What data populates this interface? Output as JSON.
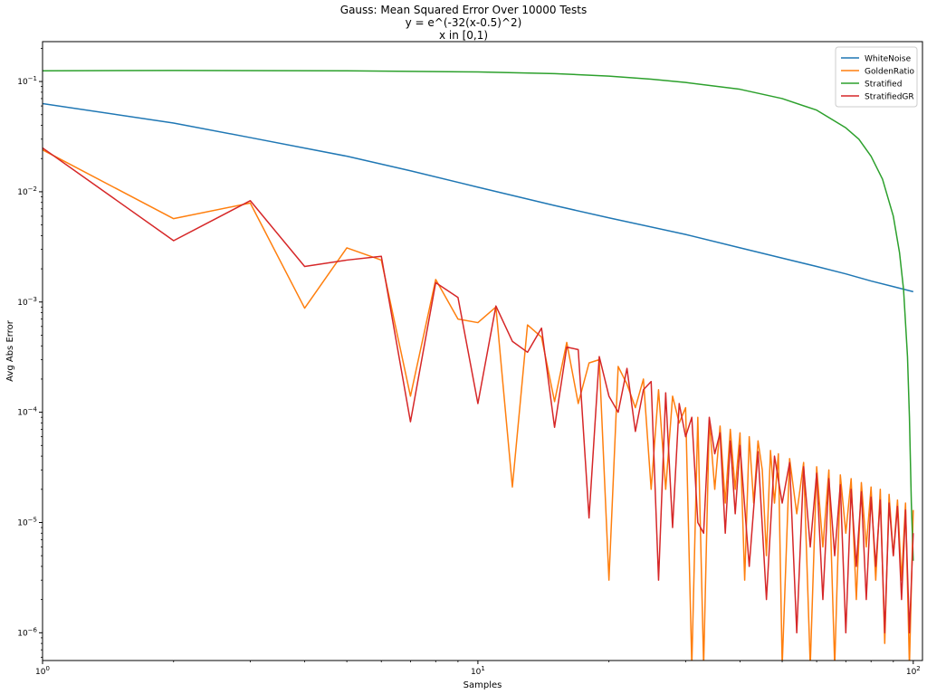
{
  "chart_data": {
    "type": "line",
    "title_lines": [
      "Gauss: Mean Squared Error Over 10000 Tests",
      "y = e^(-32(x-0.5)^2)",
      "x in [0,1)"
    ],
    "xlabel": "Samples",
    "ylabel": "Avg Abs Error",
    "xscale": "log",
    "yscale": "log",
    "xlim": [
      1,
      105
    ],
    "ylim": [
      5.6e-07,
      0.23
    ],
    "grid": false,
    "legend_position": "top-right",
    "x_ticks": [
      {
        "value": 1,
        "label": "10^0"
      },
      {
        "value": 10,
        "label": "10^1"
      },
      {
        "value": 100,
        "label": "10^2"
      }
    ],
    "y_ticks": [
      {
        "value": 1e-06,
        "label": "10^-6"
      },
      {
        "value": 1e-05,
        "label": "10^-5"
      },
      {
        "value": 0.0001,
        "label": "10^-4"
      },
      {
        "value": 0.001,
        "label": "10^-3"
      },
      {
        "value": 0.01,
        "label": "10^-2"
      },
      {
        "value": 0.1,
        "label": "10^-1"
      }
    ],
    "series": [
      {
        "name": "WhiteNoise",
        "color": "#1f77b4",
        "x": [
          1,
          2,
          3,
          5,
          7,
          10,
          15,
          20,
          30,
          40,
          50,
          60,
          70,
          80,
          90,
          100
        ],
        "y": [
          0.063,
          0.042,
          0.031,
          0.021,
          0.0155,
          0.011,
          0.0075,
          0.0058,
          0.0041,
          0.0031,
          0.0025,
          0.0021,
          0.0018,
          0.00155,
          0.00138,
          0.00124
        ]
      },
      {
        "name": "GoldenRatio",
        "color": "#ff7f0e",
        "x": [
          1,
          2,
          3,
          4,
          5,
          6,
          7,
          8,
          9,
          10,
          11,
          12,
          13,
          14,
          15,
          16,
          17,
          18,
          19,
          20,
          21,
          22,
          23,
          24,
          25,
          26,
          27,
          28,
          29,
          30,
          31,
          32,
          33,
          34,
          35,
          36,
          37,
          38,
          39,
          40,
          41,
          42,
          43,
          44,
          45,
          46,
          47,
          48,
          49,
          50,
          52,
          54,
          56,
          58,
          60,
          62,
          64,
          66,
          68,
          70,
          72,
          74,
          76,
          78,
          80,
          82,
          84,
          86,
          88,
          90,
          92,
          94,
          96,
          98,
          100
        ],
        "y": [
          0.024,
          0.0057,
          0.0079,
          0.00088,
          0.0031,
          0.0024,
          0.00014,
          0.0016,
          0.0007,
          0.00065,
          0.0009,
          2.1e-05,
          0.00062,
          0.00048,
          0.000125,
          0.00043,
          0.00012,
          0.00028,
          0.0003,
          3e-06,
          0.00026,
          0.00018,
          0.00011,
          0.0002,
          2e-05,
          0.00016,
          2e-05,
          0.00014,
          8e-05,
          0.00011,
          5e-07,
          9e-05,
          5e-07,
          8.5e-05,
          2e-05,
          7.5e-05,
          1.5e-05,
          7e-05,
          2e-05,
          6.5e-05,
          3e-06,
          6e-05,
          1.5e-05,
          5.5e-05,
          3e-05,
          5e-06,
          4.5e-05,
          1.5e-05,
          4.2e-05,
          5e-07,
          3.8e-05,
          1.2e-05,
          3.5e-05,
          5e-07,
          3.2e-05,
          6e-06,
          3e-05,
          5e-07,
          2.7e-05,
          8e-06,
          2.5e-05,
          2e-06,
          2.3e-05,
          6e-06,
          2.1e-05,
          3e-06,
          2e-05,
          8e-07,
          1.8e-05,
          5e-06,
          1.6e-05,
          3e-06,
          1.5e-05,
          5e-07,
          1.3e-05
        ]
      },
      {
        "name": "Stratified",
        "color": "#2ca02c",
        "x": [
          1,
          2,
          5,
          10,
          15,
          20,
          25,
          30,
          40,
          50,
          60,
          70,
          75,
          80,
          85,
          90,
          93,
          95,
          97,
          98,
          99,
          100
        ],
        "y": [
          0.125,
          0.126,
          0.125,
          0.122,
          0.118,
          0.112,
          0.105,
          0.098,
          0.085,
          0.07,
          0.055,
          0.038,
          0.03,
          0.021,
          0.013,
          0.006,
          0.0028,
          0.0013,
          0.00032,
          9e-05,
          1.5e-05,
          4.5e-06
        ]
      },
      {
        "name": "StratifiedGR",
        "color": "#d62728",
        "x": [
          1,
          2,
          3,
          4,
          5,
          6,
          7,
          8,
          9,
          10,
          11,
          12,
          13,
          14,
          15,
          16,
          17,
          18,
          19,
          20,
          21,
          22,
          23,
          24,
          25,
          26,
          27,
          28,
          29,
          30,
          31,
          32,
          33,
          34,
          35,
          36,
          37,
          38,
          39,
          40,
          42,
          44,
          46,
          48,
          50,
          52,
          54,
          56,
          58,
          60,
          62,
          64,
          66,
          68,
          70,
          72,
          74,
          76,
          78,
          80,
          82,
          84,
          86,
          88,
          90,
          92,
          94,
          96,
          98,
          100
        ],
        "y": [
          0.025,
          0.0036,
          0.0083,
          0.0021,
          0.0024,
          0.0026,
          8.2e-05,
          0.0015,
          0.0011,
          0.00012,
          0.00092,
          0.00044,
          0.00035,
          0.00058,
          7.3e-05,
          0.00039,
          0.00037,
          1.1e-05,
          0.00032,
          0.00014,
          0.0001,
          0.00025,
          6.7e-05,
          0.00016,
          0.00019,
          3e-06,
          0.00015,
          9e-06,
          0.00012,
          6e-05,
          9e-05,
          1e-05,
          8e-06,
          9e-05,
          4.2e-05,
          6.5e-05,
          8e-06,
          5.5e-05,
          1.2e-05,
          5e-05,
          4e-06,
          4.4e-05,
          2e-06,
          4e-05,
          1.5e-05,
          3.5e-05,
          1e-06,
          3.2e-05,
          6e-06,
          2.8e-05,
          2e-06,
          2.5e-05,
          5e-06,
          2.2e-05,
          1e-06,
          2e-05,
          4e-06,
          1.9e-05,
          2e-06,
          1.7e-05,
          4e-06,
          1.6e-05,
          1e-06,
          1.5e-05,
          5e-06,
          1.4e-05,
          2e-06,
          1.3e-05,
          1e-06,
          8e-06
        ]
      }
    ]
  }
}
